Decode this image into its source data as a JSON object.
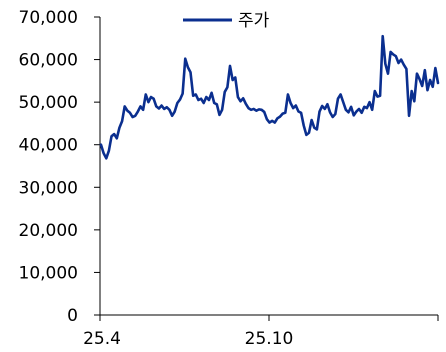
{
  "chart_data": {
    "type": "line",
    "title": "",
    "xlabel": "",
    "ylabel": "",
    "ylim": [
      0,
      70000
    ],
    "y_ticks": [
      0,
      10000,
      20000,
      30000,
      40000,
      50000,
      60000,
      70000
    ],
    "y_tick_labels": [
      "0",
      "10,000",
      "20,000",
      "30,000",
      "40,000",
      "50,000",
      "60,000",
      "70,000"
    ],
    "x_tick_labels": [
      "25.4",
      "25.10"
    ],
    "legend_position": "top-center",
    "grid": false,
    "series": [
      {
        "name": "주가",
        "color": "#0b2f8f",
        "values": [
          40000,
          38000,
          36800,
          38600,
          42000,
          42500,
          41500,
          44000,
          45500,
          49000,
          48000,
          47500,
          46500,
          46800,
          47800,
          49000,
          48200,
          51800,
          50000,
          51200,
          50800,
          49000,
          48500,
          49200,
          48400,
          48800,
          48200,
          46800,
          47800,
          49800,
          50600,
          52000,
          60200,
          58200,
          57000,
          51500,
          51800,
          50500,
          50800,
          49800,
          51200,
          50500,
          52200,
          49800,
          49500,
          47000,
          48200,
          52400,
          53500,
          58500,
          55200,
          55800,
          51200,
          50200,
          50900,
          49600,
          48600,
          48200,
          48400,
          48000,
          48300,
          48200,
          47700,
          46000,
          45200,
          45600,
          45200,
          46200,
          46600,
          47300,
          47500,
          51800,
          49800,
          48600,
          49200,
          47800,
          47500,
          44500,
          42300,
          42800,
          45800,
          44000,
          43600,
          47800,
          49100,
          48400,
          49500,
          47600,
          46500,
          47200,
          50800,
          51800,
          50000,
          48200,
          47600,
          48900,
          46900,
          47800,
          48400,
          47500,
          48900,
          48600,
          50000,
          48200,
          52600,
          51300,
          51500,
          65500,
          59000,
          56700,
          61800,
          61200,
          60800,
          59200,
          60000,
          58800,
          57800,
          46800,
          52600,
          50200,
          56700,
          55400,
          53800,
          57500,
          52800,
          55200,
          53600,
          58000,
          54500
        ]
      }
    ]
  }
}
